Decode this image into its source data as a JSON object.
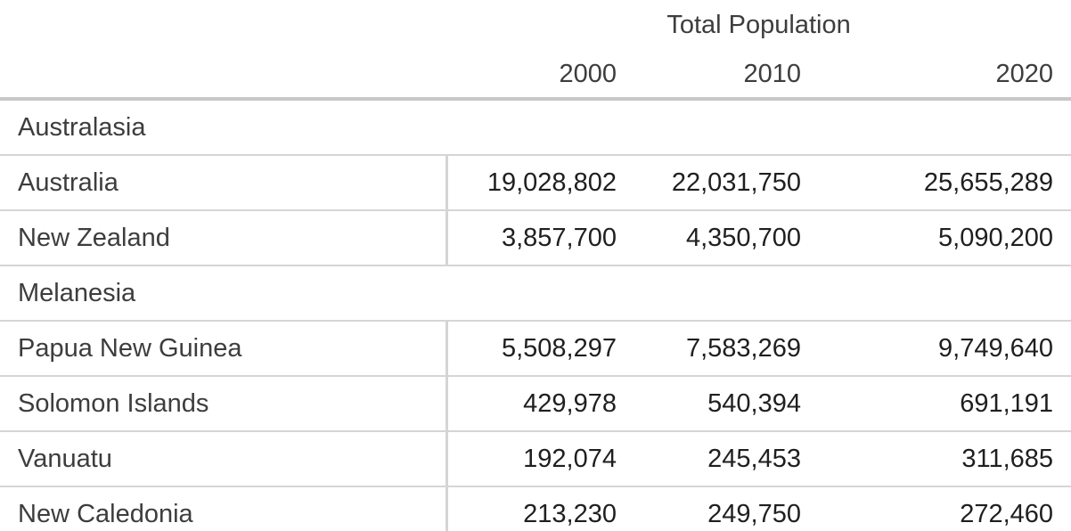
{
  "chart_data": {
    "type": "table",
    "title": "Total Population",
    "columns": [
      "2000",
      "2010",
      "2020"
    ],
    "groups": [
      {
        "name": "Australasia",
        "rows": [
          {
            "label": "Australia",
            "values": [
              "19,028,802",
              "22,031,750",
              "25,655,289"
            ]
          },
          {
            "label": "New Zealand",
            "values": [
              "3,857,700",
              "4,350,700",
              "5,090,200"
            ]
          }
        ]
      },
      {
        "name": "Melanesia",
        "rows": [
          {
            "label": "Papua New Guinea",
            "values": [
              "5,508,297",
              "7,583,269",
              "9,749,640"
            ]
          },
          {
            "label": "Solomon Islands",
            "values": [
              "429,978",
              "540,394",
              "691,191"
            ]
          },
          {
            "label": "Vanuatu",
            "values": [
              "192,074",
              "245,453",
              "311,685"
            ]
          },
          {
            "label": "New Caledonia",
            "values": [
              "213,230",
              "249,750",
              "272,460"
            ]
          }
        ]
      }
    ]
  },
  "colors": {
    "background": "#ffffff",
    "label_text": "#3d3d3d",
    "value_text": "#1f1f1f",
    "thin_rule": "#d5d5d5",
    "thick_rule": "#c8c8c8"
  }
}
